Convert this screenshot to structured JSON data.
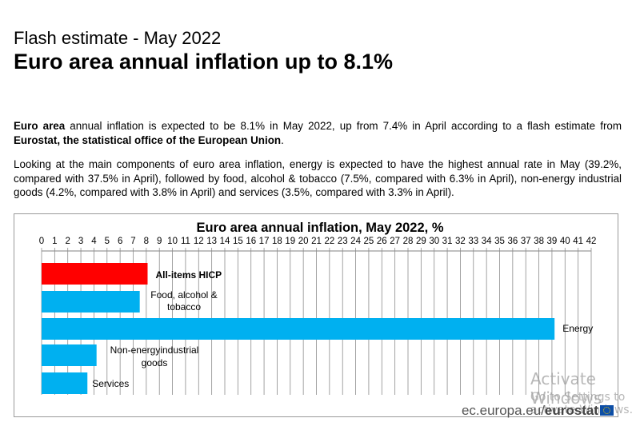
{
  "header": {
    "kicker": "Flash estimate - May 2022",
    "headline": "Euro area annual inflation up to 8.1%"
  },
  "body": {
    "p1": {
      "bold1": "Euro area",
      "text1": " annual inflation is expected to be 8.1% in May 2022, up from 7.4% in April according to a flash estimate from ",
      "bold2": "Eurostat, the statistical office of the European Union",
      "text2": "."
    },
    "p2": "Looking at the main components of euro area inflation, energy is expected to have the highest annual rate in May (39.2%, compared with 37.5% in April), followed by food, alcohol & tobacco (7.5%, compared with 6.3% in April), non-energy industrial goods (4.2%, compared with 3.8% in April) and services (3.5%, compared with 3.3% in April)."
  },
  "chart_data": {
    "type": "bar",
    "orientation": "horizontal",
    "title": "Euro area annual inflation, May 2022, %",
    "xlabel": "",
    "ylabel": "",
    "xlim": [
      0,
      42
    ],
    "x_ticks": [
      0,
      1,
      2,
      3,
      4,
      5,
      6,
      7,
      8,
      9,
      10,
      11,
      12,
      13,
      14,
      15,
      16,
      17,
      18,
      19,
      20,
      21,
      22,
      23,
      24,
      25,
      26,
      27,
      28,
      29,
      30,
      31,
      32,
      33,
      34,
      35,
      36,
      37,
      38,
      39,
      40,
      41,
      42
    ],
    "grid": true,
    "axis_position": "top",
    "categories": [
      "All-items HICP",
      "Food, alcohol & tobacco",
      "Energy",
      "Non-energy industrial goods",
      "Services"
    ],
    "values": [
      8.1,
      7.5,
      39.2,
      4.2,
      3.5
    ],
    "label_lines": [
      [
        "All-items HICP"
      ],
      [
        "Food, alcohol &",
        "tobacco"
      ],
      [
        "Energy"
      ],
      [
        "Non-energyindustrial",
        "goods"
      ],
      [
        "Services"
      ]
    ],
    "label_bold": [
      true,
      false,
      false,
      false,
      false
    ],
    "colors": [
      "#ff0000",
      "#00b0f0",
      "#00b0f0",
      "#00b0f0",
      "#00b0f0"
    ]
  },
  "footer": {
    "source_prefix": "ec.europa.eu/",
    "source_brand": "eurostat"
  },
  "overlay": {
    "line1": "Activate Windows",
    "line2": "Go to Settings to activate Windows."
  }
}
